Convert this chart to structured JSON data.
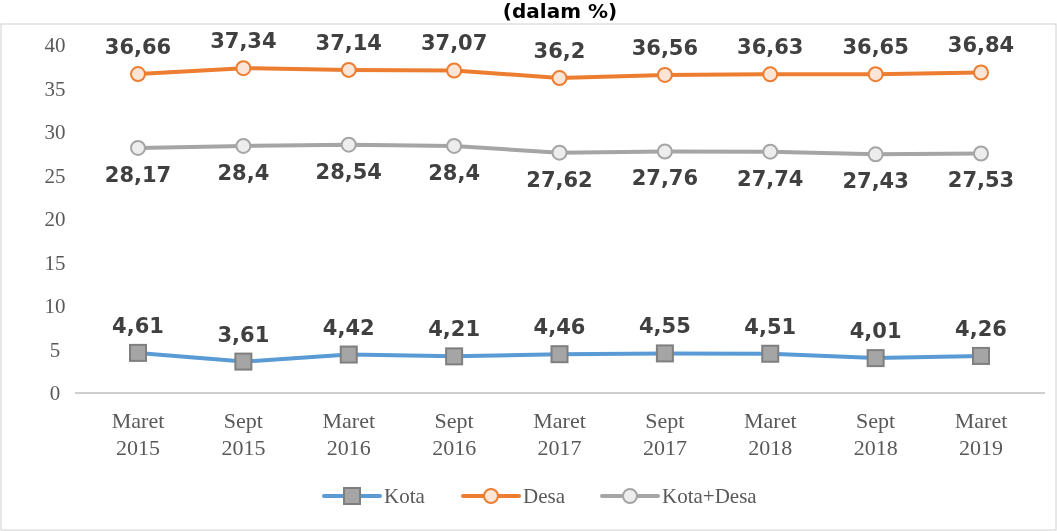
{
  "chart_data": {
    "type": "line",
    "title": "(dalam %)",
    "categories": [
      "Maret 2015",
      "Sept 2015",
      "Maret 2016",
      "Sept 2016",
      "Maret 2017",
      "Sept 2017",
      "Maret 2018",
      "Sept 2018",
      "Maret 2019"
    ],
    "ylim": [
      0,
      40
    ],
    "yticks": [
      0,
      5,
      10,
      15,
      20,
      25,
      30,
      35,
      40
    ],
    "grid": false,
    "legend": "bottom",
    "series": [
      {
        "name": "Kota",
        "color": "#5b9bd5",
        "marker": "square",
        "values": [
          4.61,
          3.61,
          4.42,
          4.21,
          4.46,
          4.55,
          4.51,
          4.01,
          4.26
        ],
        "value_labels": [
          "4,61",
          "3,61",
          "4,42",
          "4,21",
          "4,46",
          "4,55",
          "4,51",
          "4,01",
          "4,26"
        ]
      },
      {
        "name": "Desa",
        "color": "#ed7d31",
        "marker": "circle",
        "values": [
          36.66,
          37.34,
          37.14,
          37.07,
          36.2,
          36.56,
          36.63,
          36.65,
          36.84
        ],
        "value_labels": [
          "36,66",
          "37,34",
          "37,14",
          "37,07",
          "36,2",
          "36,56",
          "36,63",
          "36,65",
          "36,84"
        ]
      },
      {
        "name": "Kota+Desa",
        "color": "#a5a5a5",
        "marker": "circle",
        "values": [
          28.17,
          28.4,
          28.54,
          28.4,
          27.62,
          27.76,
          27.74,
          27.43,
          27.53
        ],
        "value_labels": [
          "28,17",
          "28,4",
          "28,54",
          "28,4",
          "27,62",
          "27,76",
          "27,74",
          "27,43",
          "27,53"
        ]
      }
    ]
  }
}
